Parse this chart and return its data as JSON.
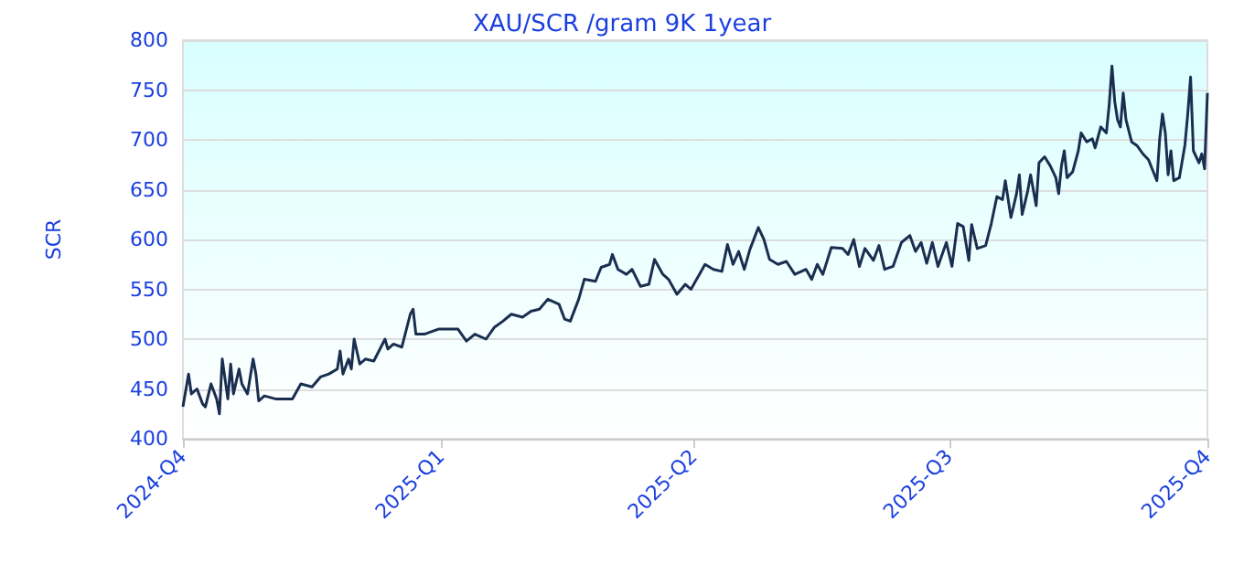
{
  "chart_data": {
    "type": "line",
    "title": "XAU/SCR /gram 9K 1year",
    "ylabel": "SCR",
    "x": [
      "2024-10-01",
      "2024-10-03",
      "2024-10-04",
      "2024-10-06",
      "2024-10-08",
      "2024-10-09",
      "2024-10-11",
      "2024-10-13",
      "2024-10-14",
      "2024-10-15",
      "2024-10-17",
      "2024-10-18",
      "2024-10-19",
      "2024-10-21",
      "2024-10-22",
      "2024-10-24",
      "2024-10-26",
      "2024-10-27",
      "2024-10-28",
      "2024-10-30",
      "2024-11-03",
      "2024-11-09",
      "2024-11-12",
      "2024-11-16",
      "2024-11-19",
      "2024-11-22",
      "2024-11-25",
      "2024-11-26",
      "2024-11-27",
      "2024-11-29",
      "2024-11-30",
      "2024-12-01",
      "2024-12-03",
      "2024-12-05",
      "2024-12-08",
      "2024-12-12",
      "2024-12-13",
      "2024-12-15",
      "2024-12-18",
      "2024-12-21",
      "2024-12-22",
      "2024-12-23",
      "2024-12-26",
      "2024-12-31",
      "2025-01-07",
      "2025-01-10",
      "2025-01-13",
      "2025-01-17",
      "2025-01-20",
      "2025-01-23",
      "2025-01-26",
      "2025-01-30",
      "2025-02-02",
      "2025-02-05",
      "2025-02-08",
      "2025-02-12",
      "2025-02-14",
      "2025-02-16",
      "2025-02-19",
      "2025-02-21",
      "2025-02-25",
      "2025-02-27",
      "2025-03-02",
      "2025-03-03",
      "2025-03-05",
      "2025-03-08",
      "2025-03-10",
      "2025-03-13",
      "2025-03-16",
      "2025-03-18",
      "2025-03-21",
      "2025-03-23",
      "2025-03-26",
      "2025-03-29",
      "2025-03-31",
      "2025-04-03",
      "2025-04-05",
      "2025-04-08",
      "2025-04-11",
      "2025-04-13",
      "2025-04-15",
      "2025-04-17",
      "2025-04-19",
      "2025-04-21",
      "2025-04-24",
      "2025-04-26",
      "2025-04-28",
      "2025-05-01",
      "2025-05-04",
      "2025-05-07",
      "2025-05-11",
      "2025-05-13",
      "2025-05-15",
      "2025-05-17",
      "2025-05-20",
      "2025-05-24",
      "2025-05-26",
      "2025-05-28",
      "2025-05-30",
      "2025-06-01",
      "2025-06-04",
      "2025-06-06",
      "2025-06-08",
      "2025-06-11",
      "2025-06-14",
      "2025-06-17",
      "2025-06-19",
      "2025-06-21",
      "2025-06-23",
      "2025-06-25",
      "2025-06-27",
      "2025-06-30",
      "2025-07-02",
      "2025-07-04",
      "2025-07-06",
      "2025-07-08",
      "2025-07-09",
      "2025-07-11",
      "2025-07-14",
      "2025-07-16",
      "2025-07-18",
      "2025-07-20",
      "2025-07-21",
      "2025-07-23",
      "2025-07-25",
      "2025-07-26",
      "2025-07-27",
      "2025-07-29",
      "2025-07-30",
      "2025-08-01",
      "2025-08-02",
      "2025-08-04",
      "2025-08-06",
      "2025-08-08",
      "2025-08-09",
      "2025-08-10",
      "2025-08-11",
      "2025-08-12",
      "2025-08-14",
      "2025-08-16",
      "2025-08-17",
      "2025-08-19",
      "2025-08-21",
      "2025-08-22",
      "2025-08-24",
      "2025-08-26",
      "2025-08-27",
      "2025-08-28",
      "2025-08-29",
      "2025-08-30",
      "2025-08-31",
      "2025-09-01",
      "2025-09-02",
      "2025-09-04",
      "2025-09-06",
      "2025-09-08",
      "2025-09-10",
      "2025-09-13",
      "2025-09-14",
      "2025-09-15",
      "2025-09-16",
      "2025-09-17",
      "2025-09-18",
      "2025-09-19",
      "2025-09-21",
      "2025-09-23",
      "2025-09-24",
      "2025-09-25",
      "2025-09-26",
      "2025-09-28",
      "2025-09-29",
      "2025-09-30",
      "2025-10-01"
    ],
    "series": [
      {
        "color": "#1a2e50",
        "values": [
          432,
          465,
          445,
          450,
          435,
          432,
          455,
          440,
          425,
          480,
          440,
          475,
          445,
          470,
          455,
          445,
          480,
          465,
          438,
          443,
          440,
          440,
          455,
          452,
          462,
          465,
          470,
          488,
          465,
          480,
          470,
          500,
          475,
          480,
          478,
          500,
          490,
          495,
          492,
          525,
          530,
          505,
          505,
          510,
          510,
          498,
          505,
          500,
          512,
          518,
          525,
          522,
          528,
          530,
          540,
          535,
          520,
          518,
          540,
          560,
          558,
          572,
          575,
          585,
          570,
          565,
          570,
          553,
          555,
          580,
          565,
          560,
          545,
          555,
          550,
          565,
          575,
          570,
          568,
          595,
          575,
          588,
          570,
          590,
          612,
          600,
          580,
          575,
          578,
          565,
          570,
          560,
          575,
          565,
          592,
          591,
          585,
          600,
          573,
          591,
          579,
          594,
          570,
          573,
          597,
          604,
          588,
          597,
          576,
          597,
          573,
          597,
          573,
          616,
          613,
          579,
          615,
          591,
          594,
          616,
          643,
          640,
          659,
          622,
          646,
          665,
          625,
          649,
          665,
          634,
          677,
          683,
          674,
          662,
          646,
          674,
          689,
          662,
          668,
          689,
          707,
          698,
          701,
          692,
          713,
          707,
          735,
          774,
          738,
          720,
          713,
          747,
          720,
          698,
          694,
          686,
          680,
          659,
          701,
          726,
          707,
          665,
          689,
          659,
          662,
          695,
          726,
          763,
          689,
          677,
          686,
          671,
          747
        ]
      }
    ],
    "xlim": [
      "2024-10-01",
      "2025-10-01"
    ],
    "xticks": [
      {
        "value": "2024-10-01",
        "label": "2024-Q4"
      },
      {
        "value": "2025-01-01",
        "label": "2025-Q1"
      },
      {
        "value": "2025-04-01",
        "label": "2025-Q2"
      },
      {
        "value": "2025-07-01",
        "label": "2025-Q3"
      },
      {
        "value": "2025-10-01",
        "label": "2025-Q4"
      }
    ],
    "ylim": [
      400,
      800
    ],
    "yticks": [
      400,
      450,
      500,
      550,
      600,
      650,
      700,
      750,
      800
    ],
    "grid": "y",
    "marker": "none",
    "line_style": "solid"
  }
}
